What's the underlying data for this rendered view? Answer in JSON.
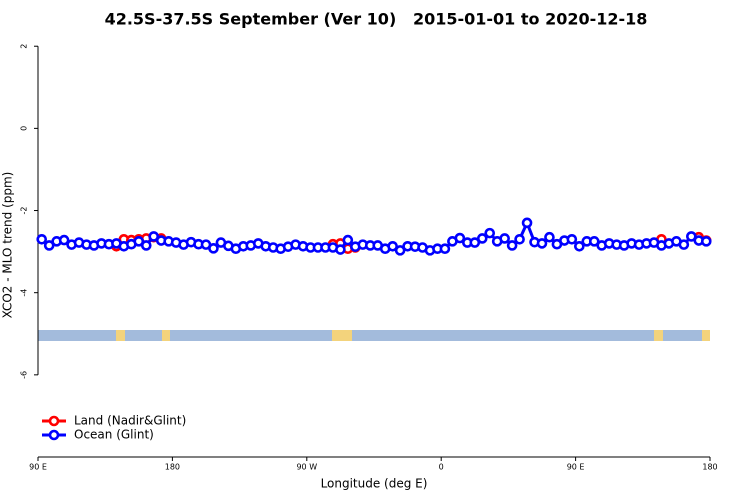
{
  "chart_data": {
    "type": "line",
    "title": "42.5S-37.5S September (Ver 10)   2015-01-01 to 2020-12-18",
    "x_label": "Longitude (deg E)",
    "y_label": "XCO2 - MLO trend (ppm)",
    "xlim": [
      90,
      540
    ],
    "xticks": [
      {
        "value": 90,
        "label": "90 E"
      },
      180,
      {
        "value": 270,
        "label": "90 W"
      },
      {
        "value": 360,
        "label": "0"
      },
      {
        "value": 450,
        "label": "90 E"
      },
      {
        "value": 540,
        "label": "180"
      }
    ],
    "ylim": [
      -8,
      2.2
    ],
    "yticks": [
      -6,
      -4,
      -2,
      0,
      2
    ],
    "legend": "bottomleft",
    "series": [
      {
        "name": "Land (Nadir&Glint)",
        "color": "#ff0000",
        "x": [
          142.5,
          147.5,
          152.5,
          157.5,
          162.5,
          167.5,
          172.5,
          177.5,
          287.5,
          292.5,
          297.5,
          302.5,
          307.5,
          507.5,
          512.5,
          532.5,
          537.5
        ],
        "values": [
          -2.87,
          -2.7,
          -2.72,
          -2.7,
          -2.68,
          -2.65,
          -2.68,
          null,
          -2.82,
          -2.8,
          -2.93,
          -2.9,
          null,
          -2.7,
          null,
          -2.65,
          -2.73
        ]
      },
      {
        "name": "Ocean (Glint)",
        "color": "#0000ff",
        "x": [
          92.5,
          97.5,
          102.5,
          107.5,
          112.5,
          117.5,
          122.5,
          127.5,
          132.5,
          137.5,
          142.5,
          147.5,
          152.5,
          157.5,
          162.5,
          167.5,
          172.5,
          177.5,
          182.5,
          187.5,
          192.5,
          197.5,
          202.5,
          207.5,
          212.5,
          217.5,
          222.5,
          227.5,
          232.5,
          237.5,
          242.5,
          247.5,
          252.5,
          257.5,
          262.5,
          267.5,
          272.5,
          277.5,
          282.5,
          287.5,
          292.5,
          297.5,
          302.5,
          307.5,
          312.5,
          317.5,
          322.5,
          327.5,
          332.5,
          337.5,
          342.5,
          347.5,
          352.5,
          357.5,
          362.5,
          367.5,
          372.5,
          377.5,
          382.5,
          387.5,
          392.5,
          397.5,
          402.5,
          407.5,
          412.5,
          417.5,
          422.5,
          427.5,
          432.5,
          437.5,
          442.5,
          447.5,
          452.5,
          457.5,
          462.5,
          467.5,
          472.5,
          477.5,
          482.5,
          487.5,
          492.5,
          497.5,
          502.5,
          507.5,
          512.5,
          517.5,
          522.5,
          527.5,
          532.5,
          537.5
        ],
        "values": [
          -2.7,
          -2.85,
          -2.75,
          -2.72,
          -2.83,
          -2.78,
          -2.83,
          -2.85,
          -2.8,
          -2.82,
          -2.8,
          -2.87,
          -2.82,
          -2.75,
          -2.85,
          -2.63,
          -2.73,
          -2.75,
          -2.78,
          -2.83,
          -2.77,
          -2.82,
          -2.83,
          -2.92,
          -2.78,
          -2.86,
          -2.93,
          -2.87,
          -2.85,
          -2.8,
          -2.87,
          -2.9,
          -2.93,
          -2.88,
          -2.83,
          -2.87,
          -2.9,
          -2.9,
          -2.9,
          -2.9,
          -2.95,
          -2.72,
          -2.88,
          -2.83,
          -2.85,
          -2.85,
          -2.93,
          -2.87,
          -2.97,
          -2.87,
          -2.88,
          -2.9,
          -2.97,
          -2.93,
          -2.93,
          -2.75,
          -2.67,
          -2.78,
          -2.78,
          -2.68,
          -2.55,
          -2.75,
          -2.68,
          -2.85,
          -2.7,
          -2.3,
          -2.77,
          -2.8,
          -2.65,
          -2.82,
          -2.73,
          -2.7,
          -2.87,
          -2.75,
          -2.75,
          -2.85,
          -2.8,
          -2.83,
          -2.85,
          -2.8,
          -2.83,
          -2.8,
          -2.78,
          -2.85,
          -2.8,
          -2.75,
          -2.83,
          -2.63,
          -2.73,
          -2.75
        ]
      }
    ]
  }
}
